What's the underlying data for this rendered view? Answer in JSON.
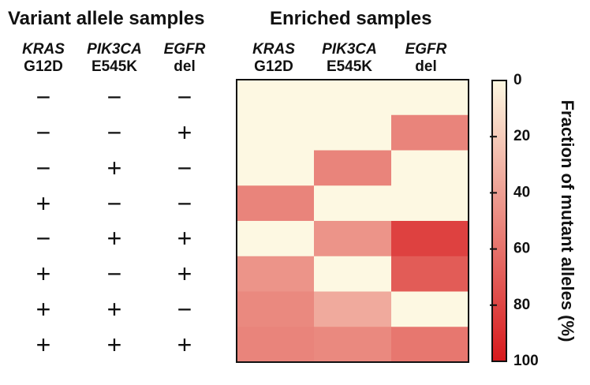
{
  "chart_data": {
    "type": "heatmap",
    "left_title": "Variant allele samples",
    "heatmap_title": "Enriched samples",
    "columns": [
      {
        "gene": "KRAS",
        "mutation": "G12D"
      },
      {
        "gene": "PIK3CA",
        "mutation": "E545K"
      },
      {
        "gene": "EGFR",
        "mutation": "del"
      }
    ],
    "rows": [
      {
        "status": [
          "−",
          "−",
          "−"
        ],
        "values": [
          0,
          0,
          0
        ]
      },
      {
        "status": [
          "−",
          "−",
          "+"
        ],
        "values": [
          0,
          0,
          52
        ]
      },
      {
        "status": [
          "−",
          "+",
          "−"
        ],
        "values": [
          0,
          52,
          0
        ]
      },
      {
        "status": [
          "+",
          "−",
          "−"
        ],
        "values": [
          52,
          0,
          0
        ]
      },
      {
        "status": [
          "−",
          "+",
          "+"
        ],
        "values": [
          0,
          45,
          82
        ]
      },
      {
        "status": [
          "+",
          "−",
          "+"
        ],
        "values": [
          45,
          0,
          70
        ]
      },
      {
        "status": [
          "+",
          "+",
          "−"
        ],
        "values": [
          50,
          35,
          0
        ]
      },
      {
        "status": [
          "+",
          "+",
          "+"
        ],
        "values": [
          52,
          50,
          58
        ]
      }
    ],
    "colorbar": {
      "label": "Fraction of mutant alleles (%)",
      "range": [
        0,
        100
      ],
      "ticks": [
        0,
        20,
        40,
        60,
        80,
        100
      ],
      "color_low": "#fdf8e2",
      "color_high": "#d7191c"
    }
  }
}
